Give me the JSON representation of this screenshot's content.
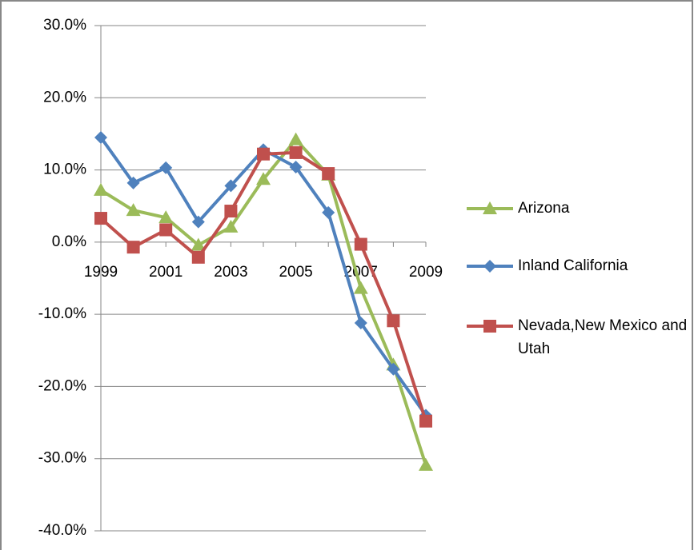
{
  "chart_data": {
    "type": "line",
    "categories": [
      "1999",
      null,
      "2001",
      null,
      "2003",
      null,
      "2005",
      null,
      "2007",
      null,
      "2009"
    ],
    "series": [
      {
        "name": "Arizona",
        "color": "#9bbb59",
        "marker": "triangle",
        "values": [
          7.2,
          4.4,
          3.4,
          -0.4,
          2.1,
          8.7,
          14.2,
          9.3,
          -6.4,
          -17.0,
          -30.9
        ]
      },
      {
        "name": "Inland California",
        "color": "#4f81bd",
        "marker": "diamond",
        "values": [
          14.5,
          8.2,
          10.3,
          2.8,
          7.8,
          12.8,
          10.4,
          4.1,
          -11.2,
          -17.6,
          -24.0
        ]
      },
      {
        "name": "Nevada,New Mexico and Utah",
        "color": "#c0504d",
        "marker": "square",
        "values": [
          3.3,
          -0.7,
          1.7,
          -2.1,
          4.3,
          12.2,
          12.4,
          9.5,
          -0.3,
          -10.9,
          -24.8
        ]
      }
    ],
    "ylim": [
      -40,
      30
    ],
    "yticks": [
      {
        "value": -40,
        "label": "-40.0%"
      },
      {
        "value": -30,
        "label": "-30.0%"
      },
      {
        "value": -20,
        "label": "-20.0%"
      },
      {
        "value": -10,
        "label": "-10.0%"
      },
      {
        "value": 0,
        "label": "0.0%"
      },
      {
        "value": 10,
        "label": "10.0%"
      },
      {
        "value": 20,
        "label": "20.0%"
      },
      {
        "value": 30,
        "label": "30.0%"
      }
    ],
    "grid": true,
    "legend": "right"
  }
}
